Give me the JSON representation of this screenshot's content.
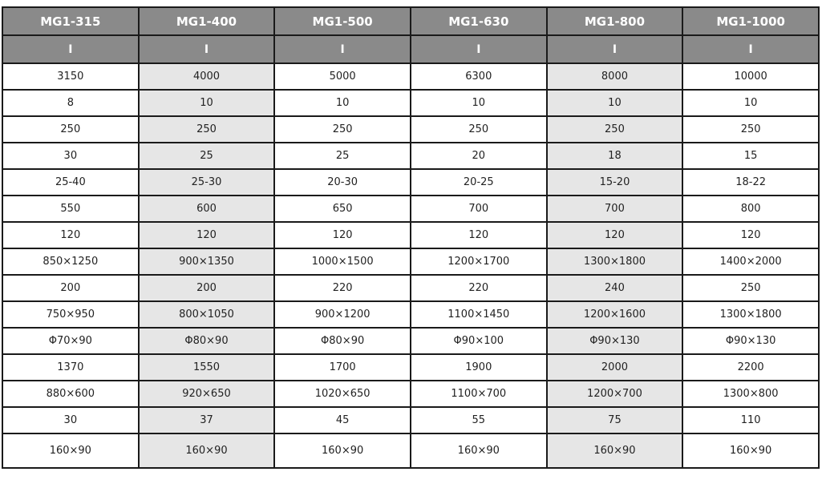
{
  "table": {
    "headers": [
      "MG1-315",
      "MG1-400",
      "MG1-500",
      "MG1-630",
      "MG1-800",
      "MG1-1000"
    ],
    "subheaders": [
      "I",
      "I",
      "I",
      "I",
      "I",
      "I"
    ],
    "shaded_columns": [
      1,
      4
    ],
    "colors": {
      "header_bg": "#8a8a8a",
      "shade_bg": "#e6e6e6",
      "border": "#1a1a1a"
    },
    "rows": [
      [
        "3150",
        "4000",
        "5000",
        "6300",
        "8000",
        "10000"
      ],
      [
        "8",
        "10",
        "10",
        "10",
        "10",
        "10"
      ],
      [
        "250",
        "250",
        "250",
        "250",
        "250",
        "250"
      ],
      [
        "30",
        "25",
        "25",
        "20",
        "18",
        "15"
      ],
      [
        "25-40",
        "25-30",
        "20-30",
        "20-25",
        "15-20",
        "18-22"
      ],
      [
        "550",
        "600",
        "650",
        "700",
        "700",
        "800"
      ],
      [
        "120",
        "120",
        "120",
        "120",
        "120",
        "120"
      ],
      [
        "850×1250",
        "900×1350",
        "1000×1500",
        "1200×1700",
        "1300×1800",
        "1400×2000"
      ],
      [
        "200",
        "200",
        "220",
        "220",
        "240",
        "250"
      ],
      [
        "750×950",
        "800×1050",
        "900×1200",
        "1100×1450",
        "1200×1600",
        "1300×1800"
      ],
      [
        "Φ70×90",
        "Φ80×90",
        "Φ80×90",
        "Φ90×100",
        "Φ90×130",
        "Φ90×130"
      ],
      [
        "1370",
        "1550",
        "1700",
        "1900",
        "2000",
        "2200"
      ],
      [
        "880×600",
        "920×650",
        "1020×650",
        "1100×700",
        "1200×700",
        "1300×800"
      ],
      [
        "30",
        "37",
        "45",
        "55",
        "75",
        "110"
      ],
      [
        "160×90",
        "160×90",
        "160×90",
        "160×90",
        "160×90",
        "160×90"
      ]
    ]
  }
}
